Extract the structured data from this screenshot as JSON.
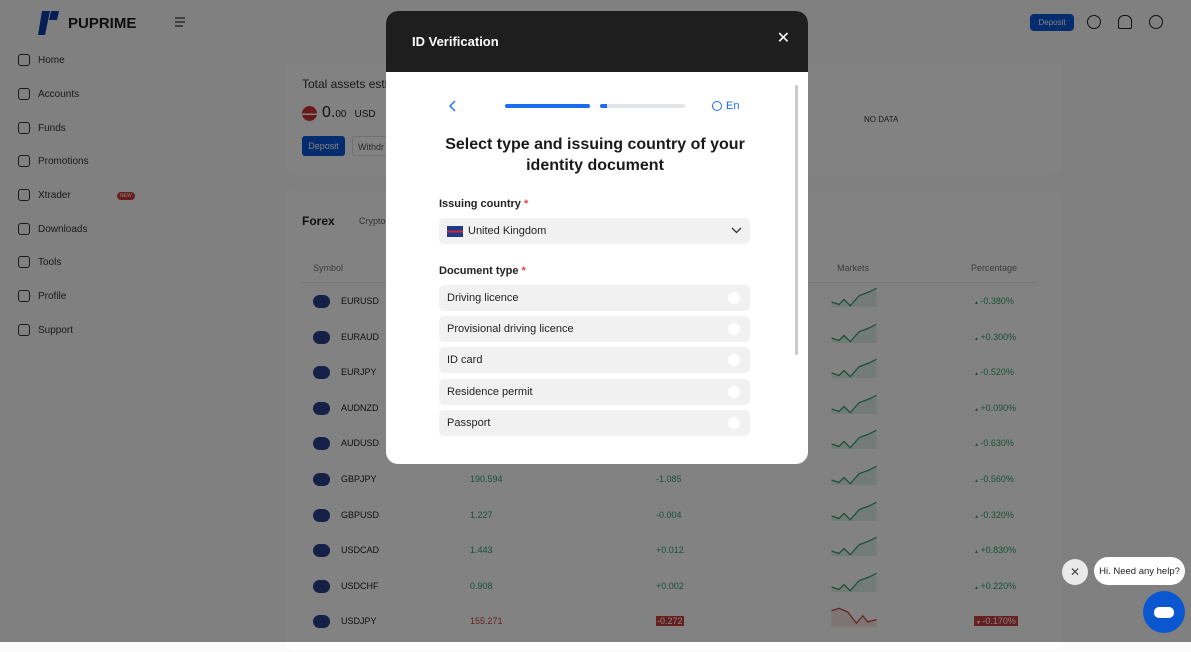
{
  "brand": {
    "name": "PUPRIME",
    "color": "#0a3da8"
  },
  "sidebar": {
    "items": [
      {
        "label": "Home",
        "icon": "home-icon"
      },
      {
        "label": "Accounts",
        "icon": "accounts-icon"
      },
      {
        "label": "Funds",
        "icon": "wallet-icon"
      },
      {
        "label": "Promotions",
        "icon": "gift-icon"
      },
      {
        "label": "Xtrader",
        "icon": "chevrons-icon",
        "badge": "NEW"
      },
      {
        "label": "Downloads",
        "icon": "download-icon"
      },
      {
        "label": "Tools",
        "icon": "tools-icon"
      },
      {
        "label": "Profile",
        "icon": "profile-icon"
      },
      {
        "label": "Support",
        "icon": "headset-icon"
      }
    ]
  },
  "topbar": {
    "deposit": "Deposit"
  },
  "assets": {
    "title": "Total assets esti",
    "amount": "0.",
    "decimals": "00",
    "currency": "USD",
    "deposit": "Deposit",
    "withdraw": "Withdr",
    "no_data": "NO DATA"
  },
  "markets": {
    "tabs": [
      "Forex",
      "Crypto"
    ],
    "headers": {
      "symbol": "Symbol",
      "markets": "Markets",
      "percentage": "Percentage"
    },
    "rows": [
      {
        "symbol": "EURUSD",
        "pct": "-0.380%",
        "trend": "up"
      },
      {
        "symbol": "EURAUD",
        "pct": "+0.300%",
        "trend": "up"
      },
      {
        "symbol": "EURJPY",
        "pct": "-0.520%",
        "trend": "up"
      },
      {
        "symbol": "AUDNZD",
        "pct": "+0.090%",
        "trend": "up"
      },
      {
        "symbol": "AUDUSD",
        "pct": "-0.630%",
        "trend": "up"
      },
      {
        "symbol": "GBPJPY",
        "price": "190.594",
        "change": "-1.085",
        "pct": "-0.560%",
        "trend": "up"
      },
      {
        "symbol": "GBPUSD",
        "price": "1.227",
        "change": "-0.004",
        "pct": "-0.320%",
        "trend": "up"
      },
      {
        "symbol": "USDCAD",
        "price": "1.443",
        "change": "+0.012",
        "pct": "+0.830%",
        "trend": "up"
      },
      {
        "symbol": "USDCHF",
        "price": "0.908",
        "change": "+0.002",
        "pct": "+0.220%",
        "trend": "up"
      },
      {
        "symbol": "USDJPY",
        "price": "155.271",
        "change": "-0.272",
        "pct": "-0.170%",
        "trend": "down"
      }
    ]
  },
  "colors": {
    "up": "#2f9e6e",
    "down": "#c94040",
    "accent": "#0a6cf0"
  },
  "modal": {
    "title": "ID Verification",
    "progress": [
      1.0,
      0.08
    ],
    "language": "En",
    "heading": "Select type and issuing country of your identity document",
    "country_label": "Issuing country",
    "country_value": "United Kingdom",
    "doc_label": "Document type",
    "doc_options": [
      "Driving licence",
      "Provisional driving licence",
      "ID card",
      "Residence permit",
      "Passport"
    ]
  },
  "chat": {
    "message": "Hi. Need any help?"
  }
}
